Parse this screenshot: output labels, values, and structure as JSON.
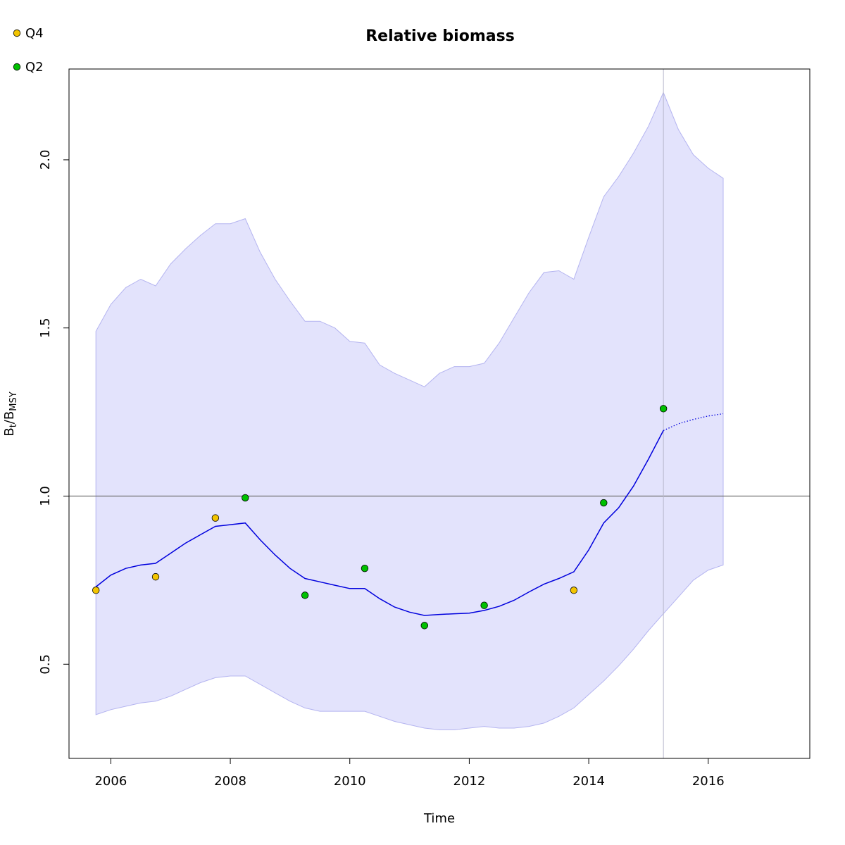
{
  "chart_data": {
    "type": "line",
    "title": "Relative biomass",
    "xlabel": "Time",
    "ylabel_main": "B",
    "ylabel_sub1": "t",
    "ylabel_mid": "/B",
    "ylabel_sub2": "MSY",
    "xlim": [
      2005.3,
      2017.7
    ],
    "ylim": [
      0.22,
      2.27
    ],
    "x_ticks": [
      2006,
      2008,
      2010,
      2012,
      2014,
      2016
    ],
    "x_tick_labels": [
      "2006",
      "2008",
      "2010",
      "2012",
      "2014",
      "2016"
    ],
    "y_ticks": [
      0.5,
      1.0,
      1.5,
      2.0
    ],
    "y_tick_labels": [
      "0.5",
      "1.0",
      "1.5",
      "2.0"
    ],
    "reference_hline": 1.0,
    "reference_vline": 2015.25,
    "grid": false,
    "legend_position": "top-left",
    "colors": {
      "band": "#e3e3fc",
      "band_edge": "#b4b4f0",
      "line": "#0000dd",
      "hline": "#707070",
      "vline": "#b8b8cc",
      "q4": "#f2c400",
      "q2": "#00c000"
    },
    "band": {
      "x": [
        2005.75,
        2006.0,
        2006.25,
        2006.5,
        2006.75,
        2007.0,
        2007.25,
        2007.5,
        2007.75,
        2008.0,
        2008.25,
        2008.5,
        2008.75,
        2009.0,
        2009.25,
        2009.5,
        2009.75,
        2010.0,
        2010.25,
        2010.5,
        2010.75,
        2011.0,
        2011.25,
        2011.5,
        2011.75,
        2012.0,
        2012.25,
        2012.5,
        2012.75,
        2013.0,
        2013.25,
        2013.5,
        2013.75,
        2014.0,
        2014.25,
        2014.5,
        2014.75,
        2015.0,
        2015.25,
        2015.5,
        2015.75,
        2016.0,
        2016.25
      ],
      "lower": [
        0.35,
        0.365,
        0.375,
        0.385,
        0.39,
        0.405,
        0.425,
        0.445,
        0.46,
        0.465,
        0.465,
        0.44,
        0.415,
        0.39,
        0.37,
        0.36,
        0.36,
        0.36,
        0.36,
        0.345,
        0.33,
        0.32,
        0.31,
        0.305,
        0.305,
        0.31,
        0.315,
        0.31,
        0.31,
        0.315,
        0.325,
        0.345,
        0.37,
        0.41,
        0.45,
        0.495,
        0.545,
        0.6,
        0.65,
        0.7,
        0.75,
        0.78,
        0.795
      ],
      "upper": [
        1.49,
        1.57,
        1.62,
        1.645,
        1.625,
        1.69,
        1.735,
        1.775,
        1.81,
        1.81,
        1.825,
        1.725,
        1.645,
        1.58,
        1.52,
        1.52,
        1.5,
        1.46,
        1.455,
        1.39,
        1.365,
        1.345,
        1.325,
        1.365,
        1.385,
        1.385,
        1.395,
        1.455,
        1.53,
        1.605,
        1.665,
        1.67,
        1.645,
        1.77,
        1.89,
        1.95,
        2.02,
        2.1,
        2.2,
        2.09,
        2.015,
        1.975,
        1.945
      ]
    },
    "series": [
      {
        "x": [
          2005.75,
          2006.0,
          2006.25,
          2006.5,
          2006.75,
          2007.0,
          2007.25,
          2007.5,
          2007.75,
          2008.0,
          2008.25,
          2008.5,
          2008.75,
          2009.0,
          2009.25,
          2009.5,
          2009.75,
          2010.0,
          2010.25,
          2010.5,
          2010.75,
          2011.0,
          2011.25,
          2011.5,
          2011.75,
          2012.0,
          2012.25,
          2012.5,
          2012.75,
          2013.0,
          2013.25,
          2013.5,
          2013.75,
          2014.0,
          2014.25,
          2014.5,
          2014.75,
          2015.0,
          2015.25
        ],
        "y": [
          0.73,
          0.765,
          0.785,
          0.795,
          0.8,
          0.83,
          0.86,
          0.885,
          0.91,
          0.915,
          0.92,
          0.87,
          0.825,
          0.785,
          0.755,
          0.745,
          0.735,
          0.725,
          0.725,
          0.695,
          0.67,
          0.655,
          0.645,
          0.648,
          0.65,
          0.652,
          0.66,
          0.672,
          0.69,
          0.715,
          0.738,
          0.755,
          0.775,
          0.84,
          0.92,
          0.965,
          1.03,
          1.11,
          1.195
        ],
        "style": "solid"
      },
      {
        "x": [
          2015.25,
          2015.5,
          2015.75,
          2016.0,
          2016.25
        ],
        "y": [
          1.195,
          1.215,
          1.228,
          1.238,
          1.245
        ],
        "style": "dotted"
      }
    ],
    "points": [
      {
        "group": "Q4",
        "x": 2005.75,
        "y": 0.72
      },
      {
        "group": "Q4",
        "x": 2006.75,
        "y": 0.76
      },
      {
        "group": "Q4",
        "x": 2007.75,
        "y": 0.935
      },
      {
        "group": "Q2",
        "x": 2008.25,
        "y": 0.995
      },
      {
        "group": "Q2",
        "x": 2009.25,
        "y": 0.705
      },
      {
        "group": "Q2",
        "x": 2010.25,
        "y": 0.785
      },
      {
        "group": "Q2",
        "x": 2011.25,
        "y": 0.615
      },
      {
        "group": "Q2",
        "x": 2012.25,
        "y": 0.675
      },
      {
        "group": "Q4",
        "x": 2013.75,
        "y": 0.72
      },
      {
        "group": "Q2",
        "x": 2014.25,
        "y": 0.98
      },
      {
        "group": "Q2",
        "x": 2015.25,
        "y": 1.26
      }
    ],
    "legend": [
      {
        "label": "Q4",
        "color_key": "q4"
      },
      {
        "label": "Q2",
        "color_key": "q2"
      }
    ]
  }
}
